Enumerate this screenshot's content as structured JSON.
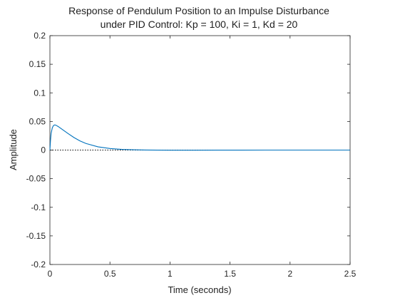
{
  "chart_data": {
    "type": "line",
    "title": [
      "Response of Pendulum Position to an Impulse Disturbance",
      "under PID Control: Kp = 100, Ki = 1, Kd = 20"
    ],
    "xlabel": "Time (seconds)",
    "ylabel": "Amplitude",
    "xlim": [
      0,
      2.5
    ],
    "ylim": [
      -0.2,
      0.2
    ],
    "x_ticks": [
      0,
      0.5,
      1,
      1.5,
      2,
      2.5
    ],
    "x_tick_labels": [
      "0",
      "0.5",
      "1",
      "1.5",
      "2",
      "2.5"
    ],
    "y_ticks": [
      0.2,
      0.15,
      0.1,
      0.05,
      0,
      -0.05,
      -0.1,
      -0.15,
      -0.2
    ],
    "y_tick_labels": [
      "0.2",
      "0.15",
      "0.1",
      "0.05",
      "0",
      "-0.05",
      "-0.1",
      "-0.15",
      "-0.2"
    ],
    "grid": false,
    "reference_line": {
      "y": 0,
      "style": "dotted",
      "color": "#000000"
    },
    "series": [
      {
        "color": "#0072bd",
        "x": [
          0,
          0.005,
          0.01,
          0.02,
          0.03,
          0.04,
          0.05,
          0.07,
          0.1,
          0.15,
          0.2,
          0.25,
          0.3,
          0.4,
          0.5,
          0.6,
          0.7,
          0.8,
          0.9,
          1.0,
          1.1,
          1.2,
          1.4,
          1.6,
          1.8,
          2.0,
          2.2,
          2.5
        ],
        "y": [
          0,
          0.017,
          0.029,
          0.039,
          0.043,
          0.044,
          0.0435,
          0.041,
          0.0365,
          0.029,
          0.022,
          0.016,
          0.0115,
          0.0057,
          0.0027,
          0.0012,
          0.0005,
          0.0001,
          -0.0001,
          -0.0002,
          -0.0002,
          -0.0002,
          -0.0001,
          -0.0001,
          0,
          0,
          0,
          0
        ]
      }
    ]
  }
}
